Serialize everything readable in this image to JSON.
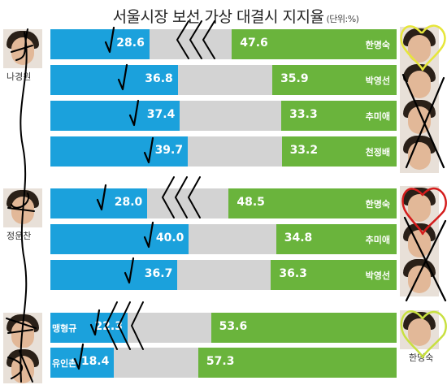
{
  "title": "서울시장 보선 가상 대결시 지지율",
  "unit": "(단위:%)",
  "chart_data": {
    "type": "bar",
    "title": "서울시장 보선 가상 대결시 지지율",
    "unit": "(단위:%)",
    "groups": [
      {
        "left_candidate": "나경원",
        "rows": [
          {
            "right_candidate": "한명숙",
            "left_value": 28.6,
            "right_value": 47.6
          },
          {
            "right_candidate": "박영선",
            "left_value": 36.8,
            "right_value": 35.9
          },
          {
            "right_candidate": "추미애",
            "left_value": 37.4,
            "right_value": 33.3
          },
          {
            "right_candidate": "천정배",
            "left_value": 39.7,
            "right_value": 33.2
          }
        ]
      },
      {
        "left_candidate": "정운찬",
        "rows": [
          {
            "right_candidate": "한명숙",
            "left_value": 28.0,
            "right_value": 48.5
          },
          {
            "right_candidate": "추미애",
            "left_value": 40.0,
            "right_value": 34.8
          },
          {
            "right_candidate": "박영선",
            "left_value": 36.7,
            "right_value": 36.3
          }
        ]
      },
      {
        "left_candidate": "",
        "rows": [
          {
            "right_candidate": "",
            "left_label": "맹형규",
            "left_value": 22.3,
            "right_value": 53.6
          },
          {
            "right_candidate": "",
            "left_label": "유인촌",
            "left_value": 18.4,
            "right_value": 57.3
          }
        ]
      }
    ],
    "extra_labels": [
      "한명숙"
    ]
  },
  "colors": {
    "left": "#1ba1dc",
    "right": "#6ab43c",
    "undecided": "#d3d3d3",
    "ink": "#000000"
  }
}
